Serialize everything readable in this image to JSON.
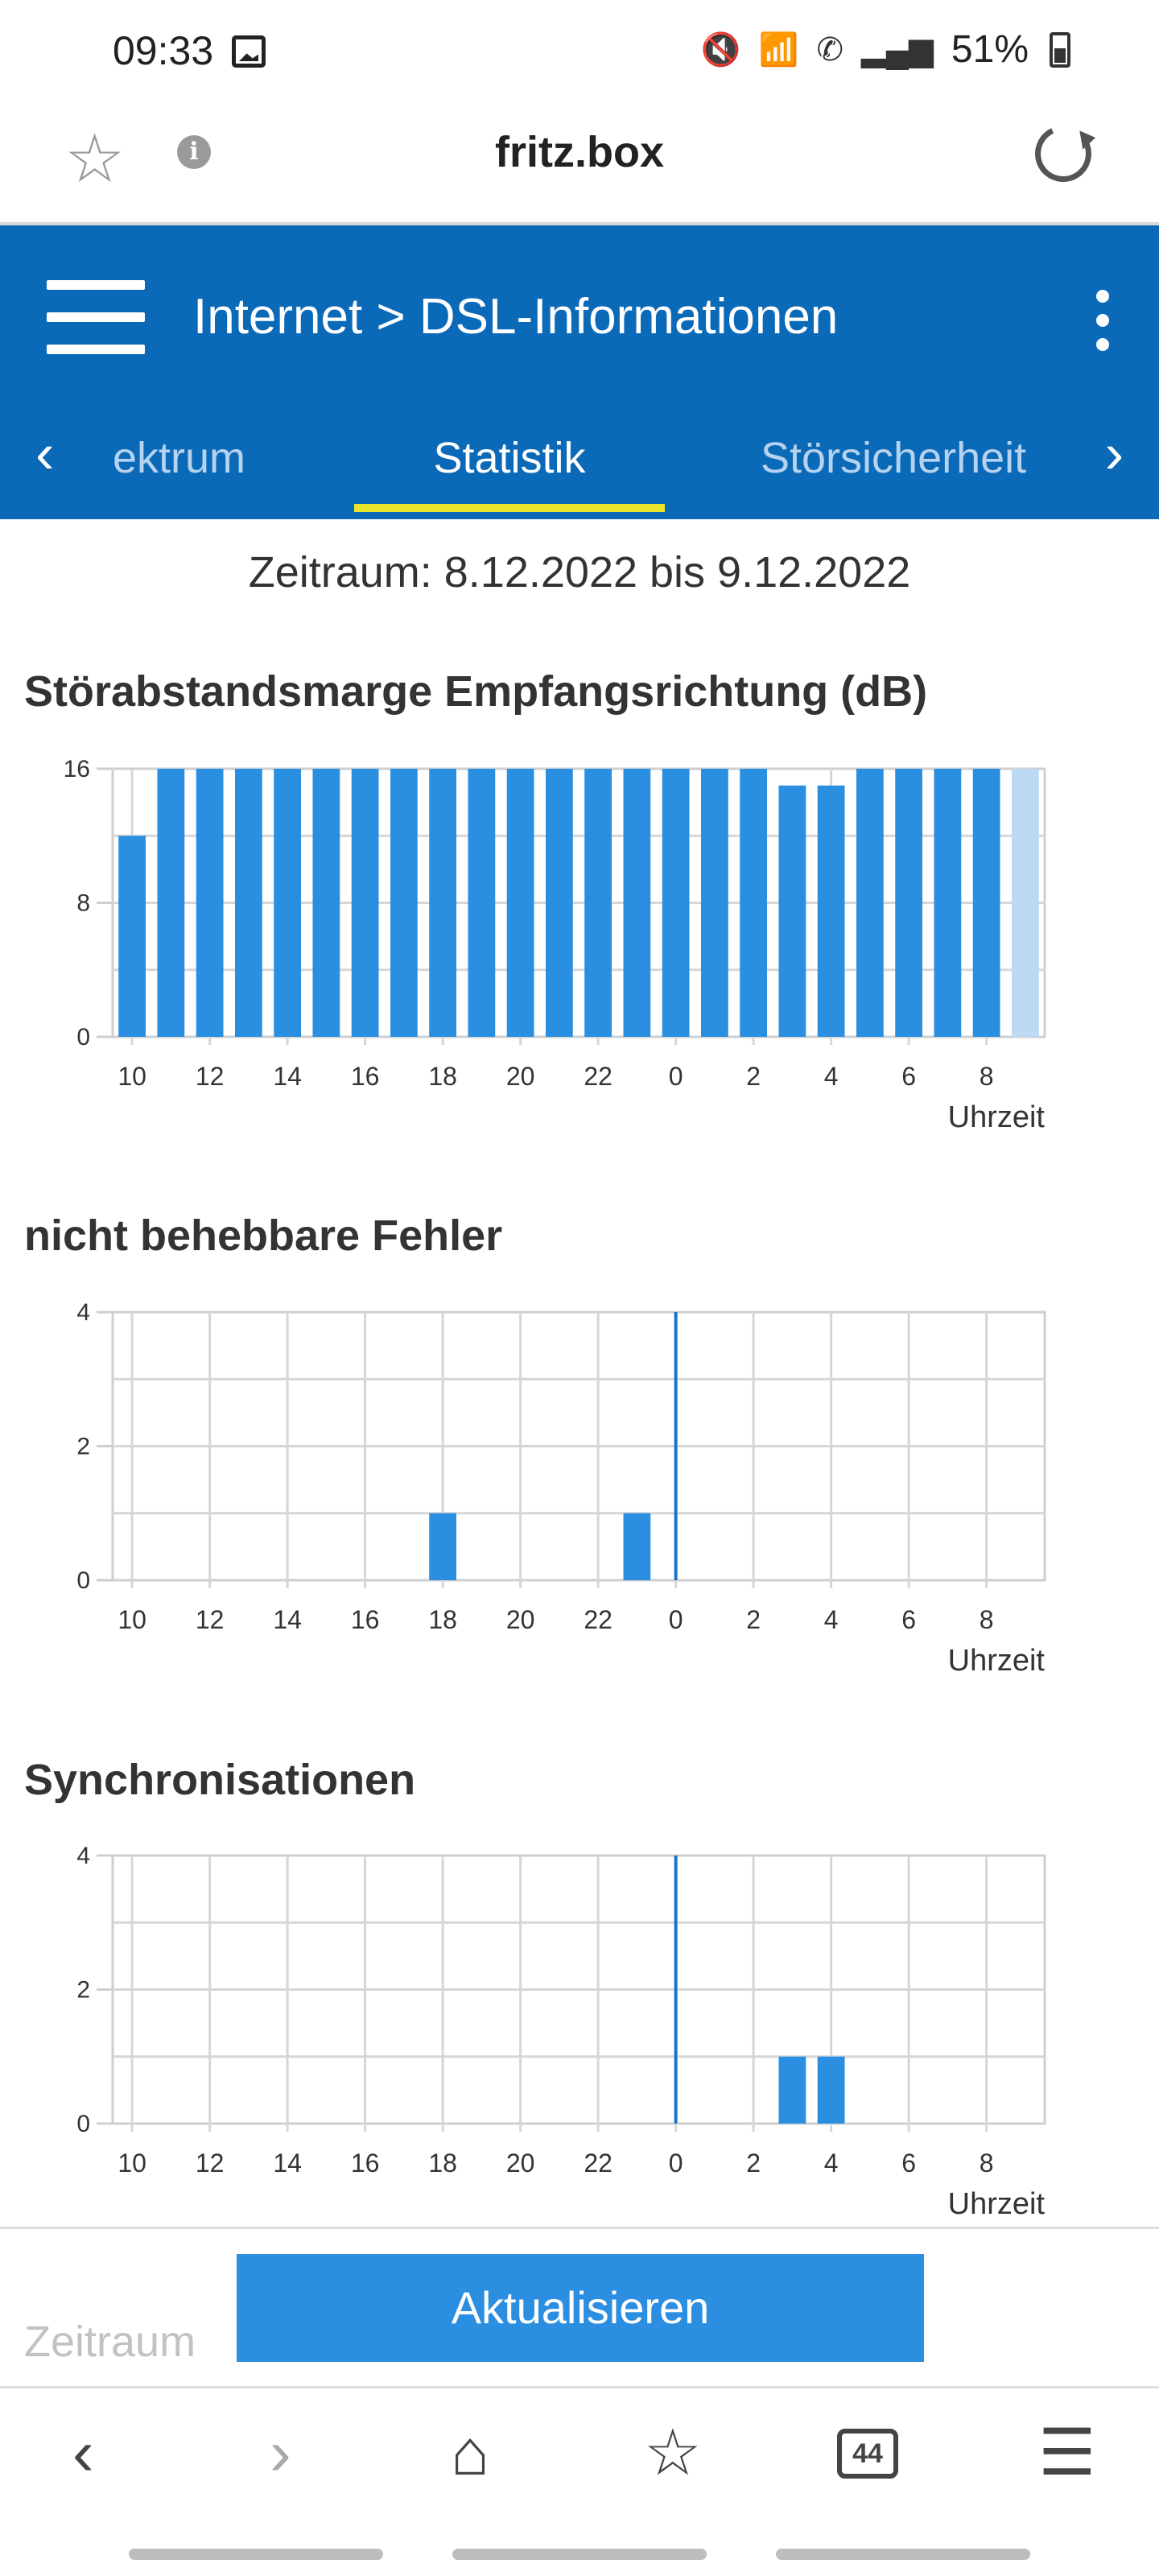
{
  "status": {
    "time": "09:33",
    "battery": "51%",
    "icons": [
      "image-icon",
      "mute-icon",
      "wifi-call-icon",
      "call-icon",
      "signal-icon",
      "battery-icon"
    ]
  },
  "browser": {
    "url": "fritz.box",
    "icons": [
      "star-icon",
      "info-icon",
      "reload-icon"
    ]
  },
  "header": {
    "breadcrumb": "Internet > DSL-Informationen",
    "color": "#0b6ab8"
  },
  "tabs": [
    {
      "label": "ektrum",
      "active": false
    },
    {
      "label": "Statistik",
      "active": true
    },
    {
      "label": "Störsicherheit",
      "active": false
    }
  ],
  "period": "Zeitraum: 8.12.2022 bis 9.12.2022",
  "chart_data": [
    {
      "type": "bar",
      "title": "Störabstandsmarge Empfangsrichtung (dB)",
      "xlabel": "Uhrzeit",
      "xticks": [
        "10",
        "12",
        "14",
        "16",
        "18",
        "20",
        "22",
        "0",
        "2",
        "4",
        "6",
        "8"
      ],
      "yticks": [
        "0",
        "8",
        "16"
      ],
      "ylim": [
        0,
        16
      ],
      "grid": true,
      "values": [
        12,
        16,
        16,
        16,
        16,
        16,
        16,
        16,
        16,
        16,
        16,
        16,
        16,
        16,
        16,
        16,
        16,
        15,
        15,
        16,
        16,
        16,
        16,
        16
      ],
      "last_bar_light": true,
      "color": "#2a8fe1"
    },
    {
      "type": "bar",
      "title": "nicht behebbare Fehler",
      "xlabel": "Uhrzeit",
      "xticks": [
        "10",
        "12",
        "14",
        "16",
        "18",
        "20",
        "22",
        "0",
        "2",
        "4",
        "6",
        "8"
      ],
      "yticks": [
        "0",
        "2",
        "4"
      ],
      "ylim": [
        0,
        4
      ],
      "grid": true,
      "values": [
        0,
        0,
        0,
        0,
        0,
        0,
        0,
        0,
        1,
        0,
        0,
        0,
        0,
        1,
        0,
        0,
        0,
        0,
        0,
        0,
        0,
        0,
        0,
        0
      ],
      "color": "#2a8fe1"
    },
    {
      "type": "bar",
      "title": "Synchronisationen",
      "xlabel": "Uhrzeit",
      "xticks": [
        "10",
        "12",
        "14",
        "16",
        "18",
        "20",
        "22",
        "0",
        "2",
        "4",
        "6",
        "8"
      ],
      "yticks": [
        "0",
        "2",
        "4"
      ],
      "ylim": [
        0,
        4
      ],
      "grid": true,
      "values": [
        0,
        0,
        0,
        0,
        0,
        0,
        0,
        0,
        0,
        0,
        0,
        0,
        0,
        0,
        0,
        0,
        0,
        1,
        1,
        0,
        0,
        0,
        0,
        0
      ],
      "color": "#2a8fe1"
    }
  ],
  "bottom": {
    "zeitraum_label": "Zeitraum",
    "refresh_label": "Aktualisieren"
  },
  "nav": {
    "tabs_count": "44",
    "icons": [
      "back-icon",
      "forward-icon",
      "home-icon",
      "bookmarks-icon",
      "tabs-icon",
      "menu-icon"
    ]
  }
}
